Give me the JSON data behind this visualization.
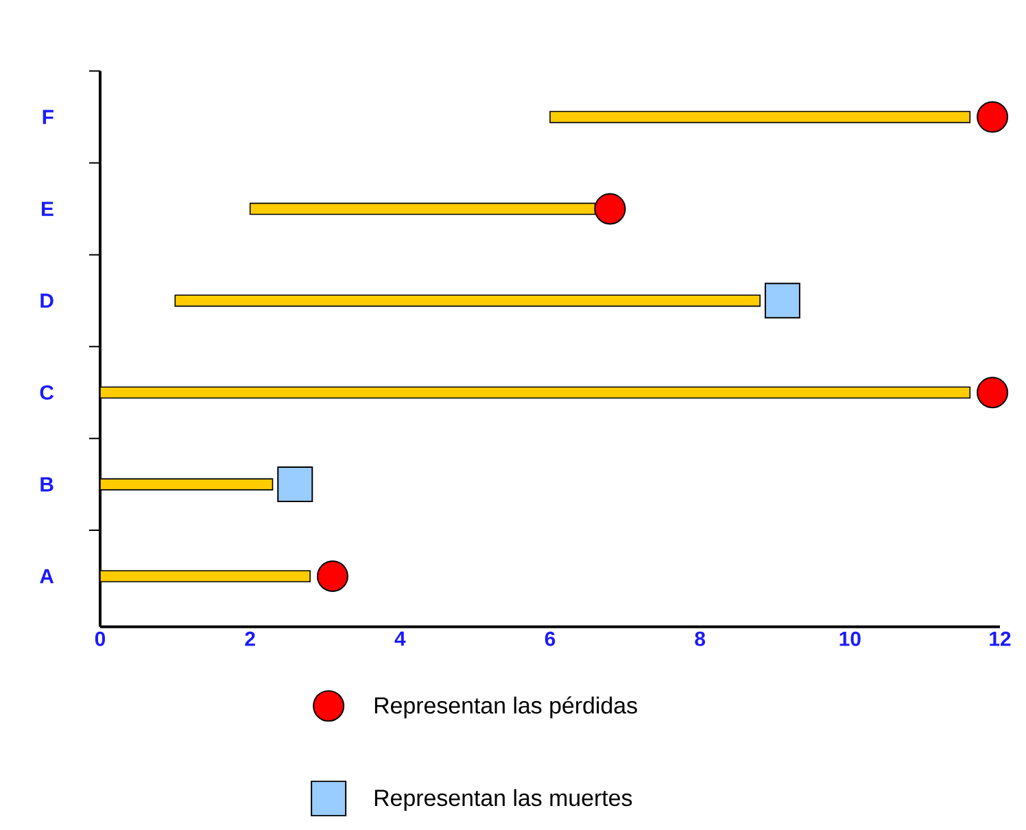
{
  "chart_data": {
    "type": "bar",
    "orientation": "horizontal",
    "categories": [
      "F",
      "E",
      "D",
      "C",
      "B",
      "A"
    ],
    "xlim": [
      0,
      12
    ],
    "xticks": [
      0,
      2,
      4,
      6,
      8,
      10,
      12
    ],
    "legend": "bottom",
    "grid": false,
    "series": [
      {
        "color": "#ffcc00",
        "base": [
          6,
          2,
          1,
          0,
          0,
          0
        ],
        "values": [
          5.6,
          4.6,
          7.8,
          11.6,
          2.3,
          2.8
        ]
      },
      {
        "type": "scatter",
        "name": "Representan las pérdidas",
        "color": "#ff0000",
        "marker": "circle",
        "values": [
          11.9,
          6.8,
          null,
          11.9,
          null,
          3.1
        ]
      },
      {
        "type": "scatter",
        "name": "Representan las muertes",
        "color": "#99ccff",
        "marker": "square",
        "values": [
          null,
          null,
          9.1,
          null,
          2.6,
          null
        ]
      }
    ]
  }
}
